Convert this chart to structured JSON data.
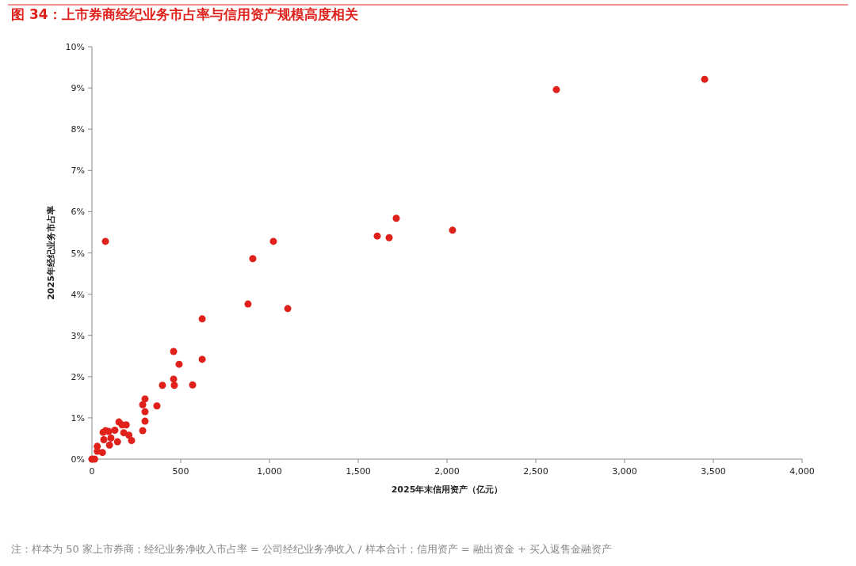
{
  "chart_data": {
    "type": "scatter",
    "title": "图 34：上市券商经纪业务市占率与信用资产规模高度相关",
    "xlabel": "2025年末信用资产（亿元）",
    "ylabel": "2025年经纪业务市占率",
    "annotations": [
      "注：样本为 50 家上市券商；经纪业务净收入市占率 = 公司经纪业务净收入 / 样本合计；信用资产 = 融出资金 + 买入返售金融资产"
    ],
    "xlim": [
      0,
      4000
    ],
    "ylim": [
      0,
      10
    ],
    "xticks": [
      0,
      500,
      {
        "value": 1000,
        "label": "1,000"
      },
      {
        "value": 1500,
        "label": "1,500"
      },
      {
        "value": 2000,
        "label": "2,000"
      },
      {
        "value": 2500,
        "label": "2,500"
      },
      {
        "value": 3000,
        "label": "3,000"
      },
      {
        "value": 3500,
        "label": "3,500"
      },
      {
        "value": 4000,
        "label": "4,000"
      }
    ],
    "yticks": [
      {
        "value": 0,
        "label": "0%"
      },
      {
        "value": 1,
        "label": "1%"
      },
      {
        "value": 2,
        "label": "2%"
      },
      {
        "value": 3,
        "label": "3%"
      },
      {
        "value": 4,
        "label": "4%"
      },
      {
        "value": 5,
        "label": "5%"
      },
      {
        "value": 6,
        "label": "6%"
      },
      {
        "value": 7,
        "label": "7%"
      },
      {
        "value": 8,
        "label": "8%"
      },
      {
        "value": 9,
        "label": "9%"
      },
      {
        "value": 10,
        "label": "10%"
      }
    ],
    "marker": "circle",
    "series": [
      {
        "color": "#e0201b",
        "x": [
          76,
          2616,
          3451,
          1714,
          1607,
          1674,
          2031,
          1022,
          906,
          879,
          1103,
          621,
          460,
          621,
          491,
          460,
          464,
          567,
          397,
          366,
          299,
          286,
          299,
          299,
          286,
          152,
          170,
          193,
          179,
          208,
          223,
          129,
          63,
          77,
          95,
          107,
          67,
          99,
          144,
          30,
          30,
          59,
          0,
          15
        ],
        "values": [
          5.28,
          8.96,
          9.21,
          5.84,
          5.41,
          5.37,
          5.55,
          5.28,
          4.86,
          3.76,
          3.65,
          3.4,
          2.61,
          2.42,
          2.3,
          1.94,
          1.79,
          1.8,
          1.79,
          1.29,
          1.46,
          1.32,
          1.15,
          0.92,
          0.69,
          0.9,
          0.83,
          0.83,
          0.64,
          0.58,
          0.45,
          0.7,
          0.65,
          0.69,
          0.67,
          0.51,
          0.47,
          0.34,
          0.42,
          0.31,
          0.19,
          0.16,
          0,
          0
        ]
      }
    ]
  }
}
